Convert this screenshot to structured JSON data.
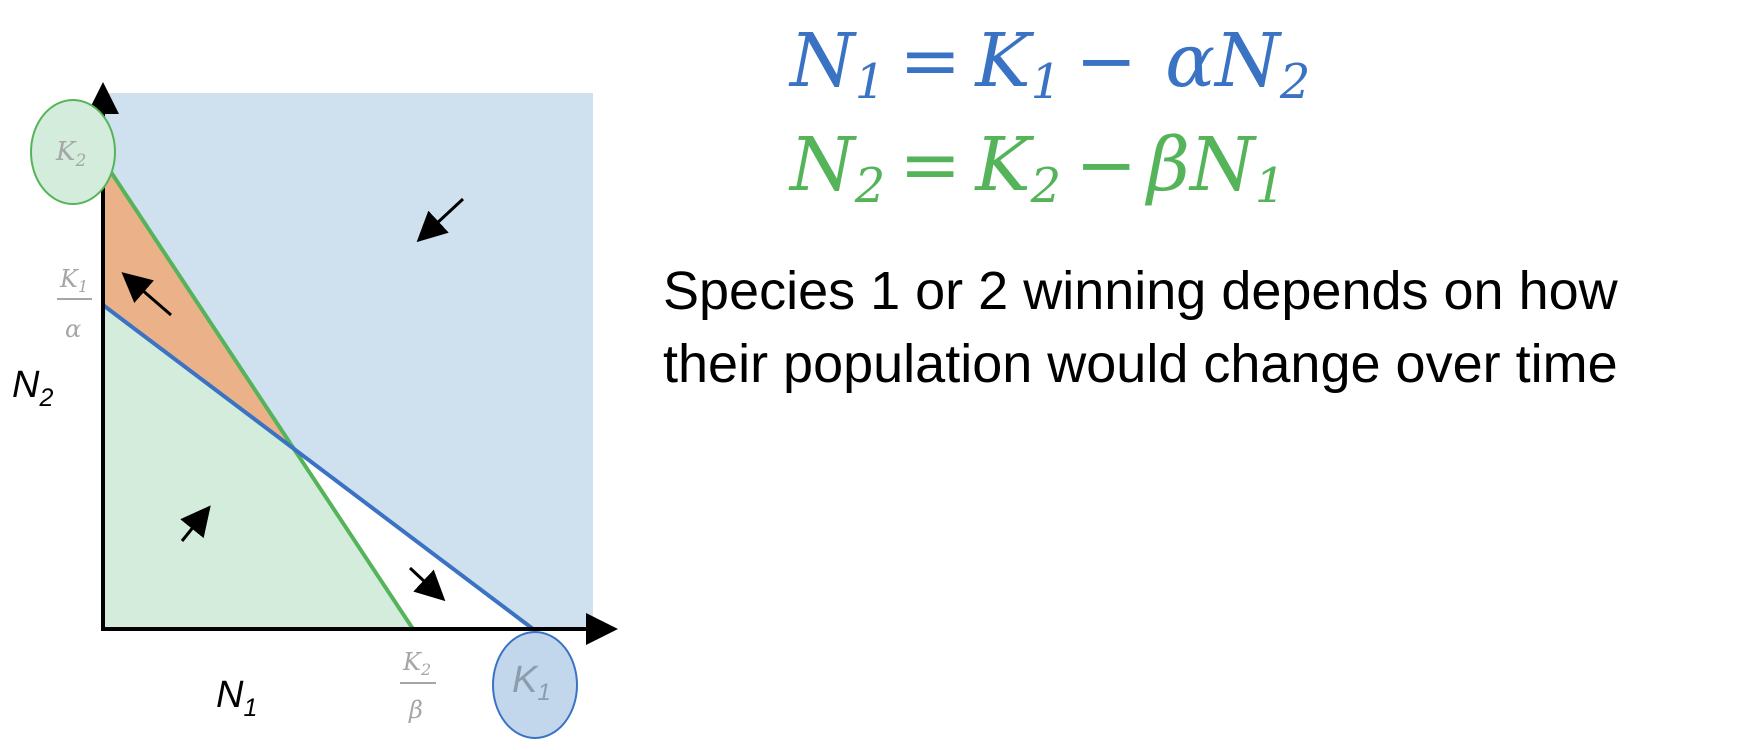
{
  "colors": {
    "species1": "#3a72c4",
    "species2": "#55b45a",
    "region_blue": "#cfe0ef",
    "region_green": "#d3ecdb",
    "region_orange": "#ebb289",
    "tick_gray": "#a6a6a6",
    "k1_circle_fill": "#c3d7ec"
  },
  "axes": {
    "x_label": "N",
    "x_sub": "1",
    "y_label": "N",
    "y_sub": "2"
  },
  "ticks": {
    "k2_intercept": {
      "main": "K",
      "sub": "2"
    },
    "k1_over_alpha": {
      "num": "K",
      "num_sub": "1",
      "den": "α"
    },
    "k2_over_beta": {
      "num": "K",
      "num_sub": "2",
      "den": "β"
    },
    "k1_intercept": {
      "main": "K",
      "sub": "1"
    }
  },
  "equations": {
    "eq1": {
      "lhs": "N",
      "lhs_sub": "1",
      "equals": "=",
      "k": "K",
      "k_sub": "1",
      "minus": "−",
      "coef": "α",
      "var": "N",
      "var_sub": "2"
    },
    "eq2": {
      "lhs": "N",
      "lhs_sub": "2",
      "equals": "=",
      "k": "K",
      "k_sub": "2",
      "minus": "−",
      "coef": "β",
      "var": "N",
      "var_sub": "1"
    }
  },
  "caption": {
    "line1": "Species 1 or 2 winning depends on how",
    "line2": "their population would change over time"
  }
}
